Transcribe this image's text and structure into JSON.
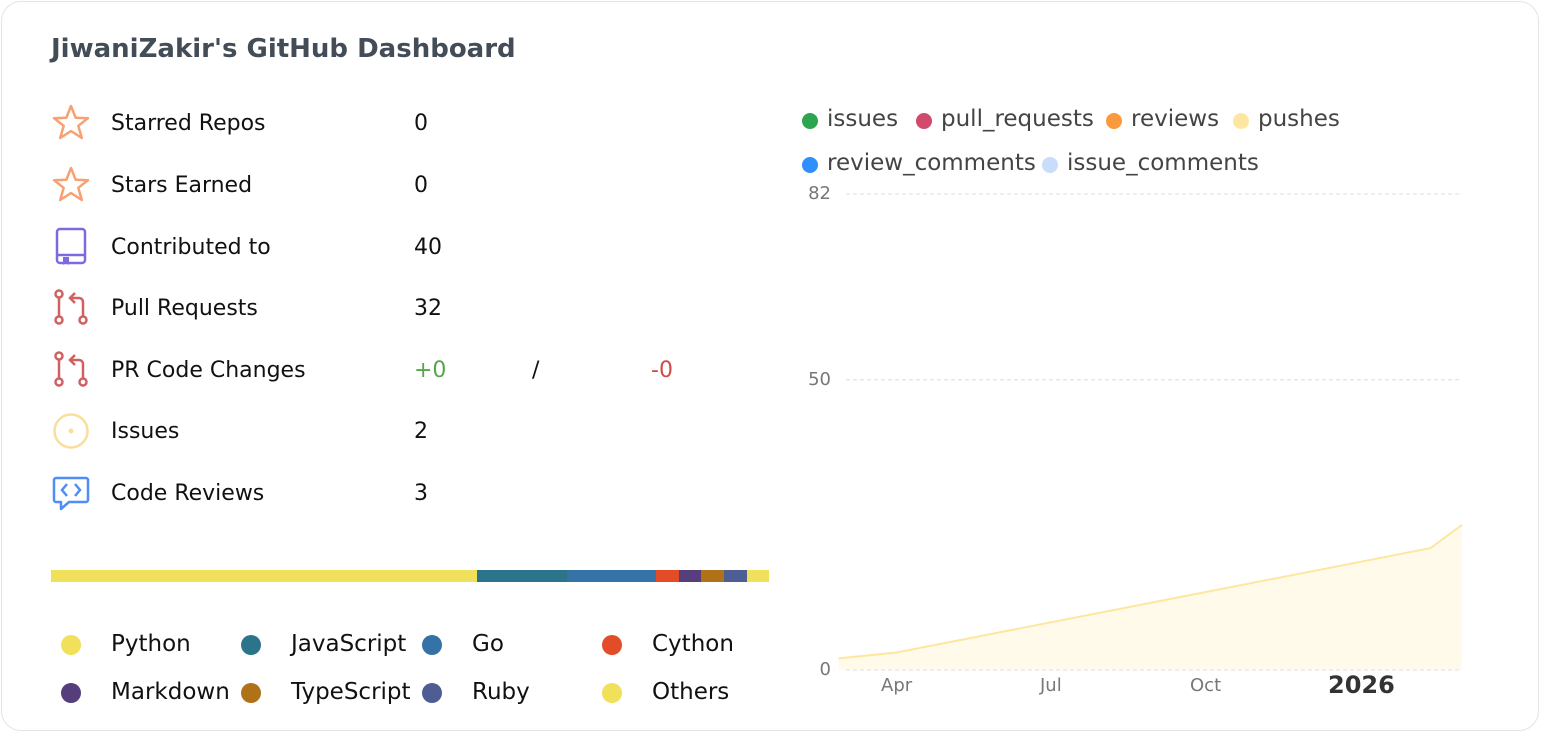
{
  "title": "JiwaniZakir's GitHub Dashboard",
  "stats": {
    "starred": {
      "label": "Starred Repos",
      "value": "0"
    },
    "stars_earned": {
      "label": "Stars Earned",
      "value": "0"
    },
    "contributed": {
      "label": "Contributed to",
      "value": "40"
    },
    "pull_requests": {
      "label": "Pull Requests",
      "value": "32"
    },
    "pr_changes": {
      "label": "PR Code Changes",
      "additions": "+0",
      "separator": "/",
      "deletions": "-0"
    },
    "issues": {
      "label": "Issues",
      "value": "2"
    },
    "reviews": {
      "label": "Code Reviews",
      "value": "3"
    }
  },
  "icons": {
    "starred": "star-icon",
    "stars_earned": "star-icon",
    "contributed": "repo-icon",
    "pull_requests": "pull-request-icon",
    "pr_changes": "pull-request-icon",
    "issues": "issue-icon",
    "reviews": "code-review-icon"
  },
  "languages": [
    {
      "name": "Python",
      "color": "#f1e05a",
      "fraction": 0.593
    },
    {
      "name": "JavaScript",
      "color": "#2b7489",
      "fraction": 0.126
    },
    {
      "name": "Go",
      "color": "#3572a5",
      "fraction": 0.124
    },
    {
      "name": "Cython",
      "color": "#e34c26",
      "fraction": 0.032
    },
    {
      "name": "Markdown",
      "color": "#563d7c",
      "fraction": 0.03
    },
    {
      "name": "TypeScript",
      "color": "#b07219",
      "fraction": 0.033
    },
    {
      "name": "Ruby",
      "color": "#4f5d95",
      "fraction": 0.031
    },
    {
      "name": "Others",
      "color": "#f1e05a",
      "fraction": 0.031
    }
  ],
  "legend": [
    {
      "name": "issues",
      "color": "#2da44e"
    },
    {
      "name": "pull_requests",
      "color": "#d1496b"
    },
    {
      "name": "reviews",
      "color": "#fb9a3c"
    },
    {
      "name": "pushes",
      "color": "#fde7a0"
    },
    {
      "name": "review_comments",
      "color": "#2f8ffb"
    },
    {
      "name": "issue_comments",
      "color": "#c8dcfb"
    }
  ],
  "chart_data": {
    "type": "area",
    "yticks": [
      "82",
      "50",
      "0"
    ],
    "ylim": [
      0,
      82
    ],
    "xticks": [
      "Apr",
      "Jul",
      "Oct",
      "2026"
    ],
    "grid": true,
    "legend_position": "top",
    "series": [
      {
        "name": "pushes",
        "color": "#fde7a0",
        "x": [
          "2025-03-01",
          "2025-04-01",
          "2026-01-15",
          "2026-02-01"
        ],
        "values": [
          2,
          3,
          21,
          25
        ]
      }
    ]
  }
}
